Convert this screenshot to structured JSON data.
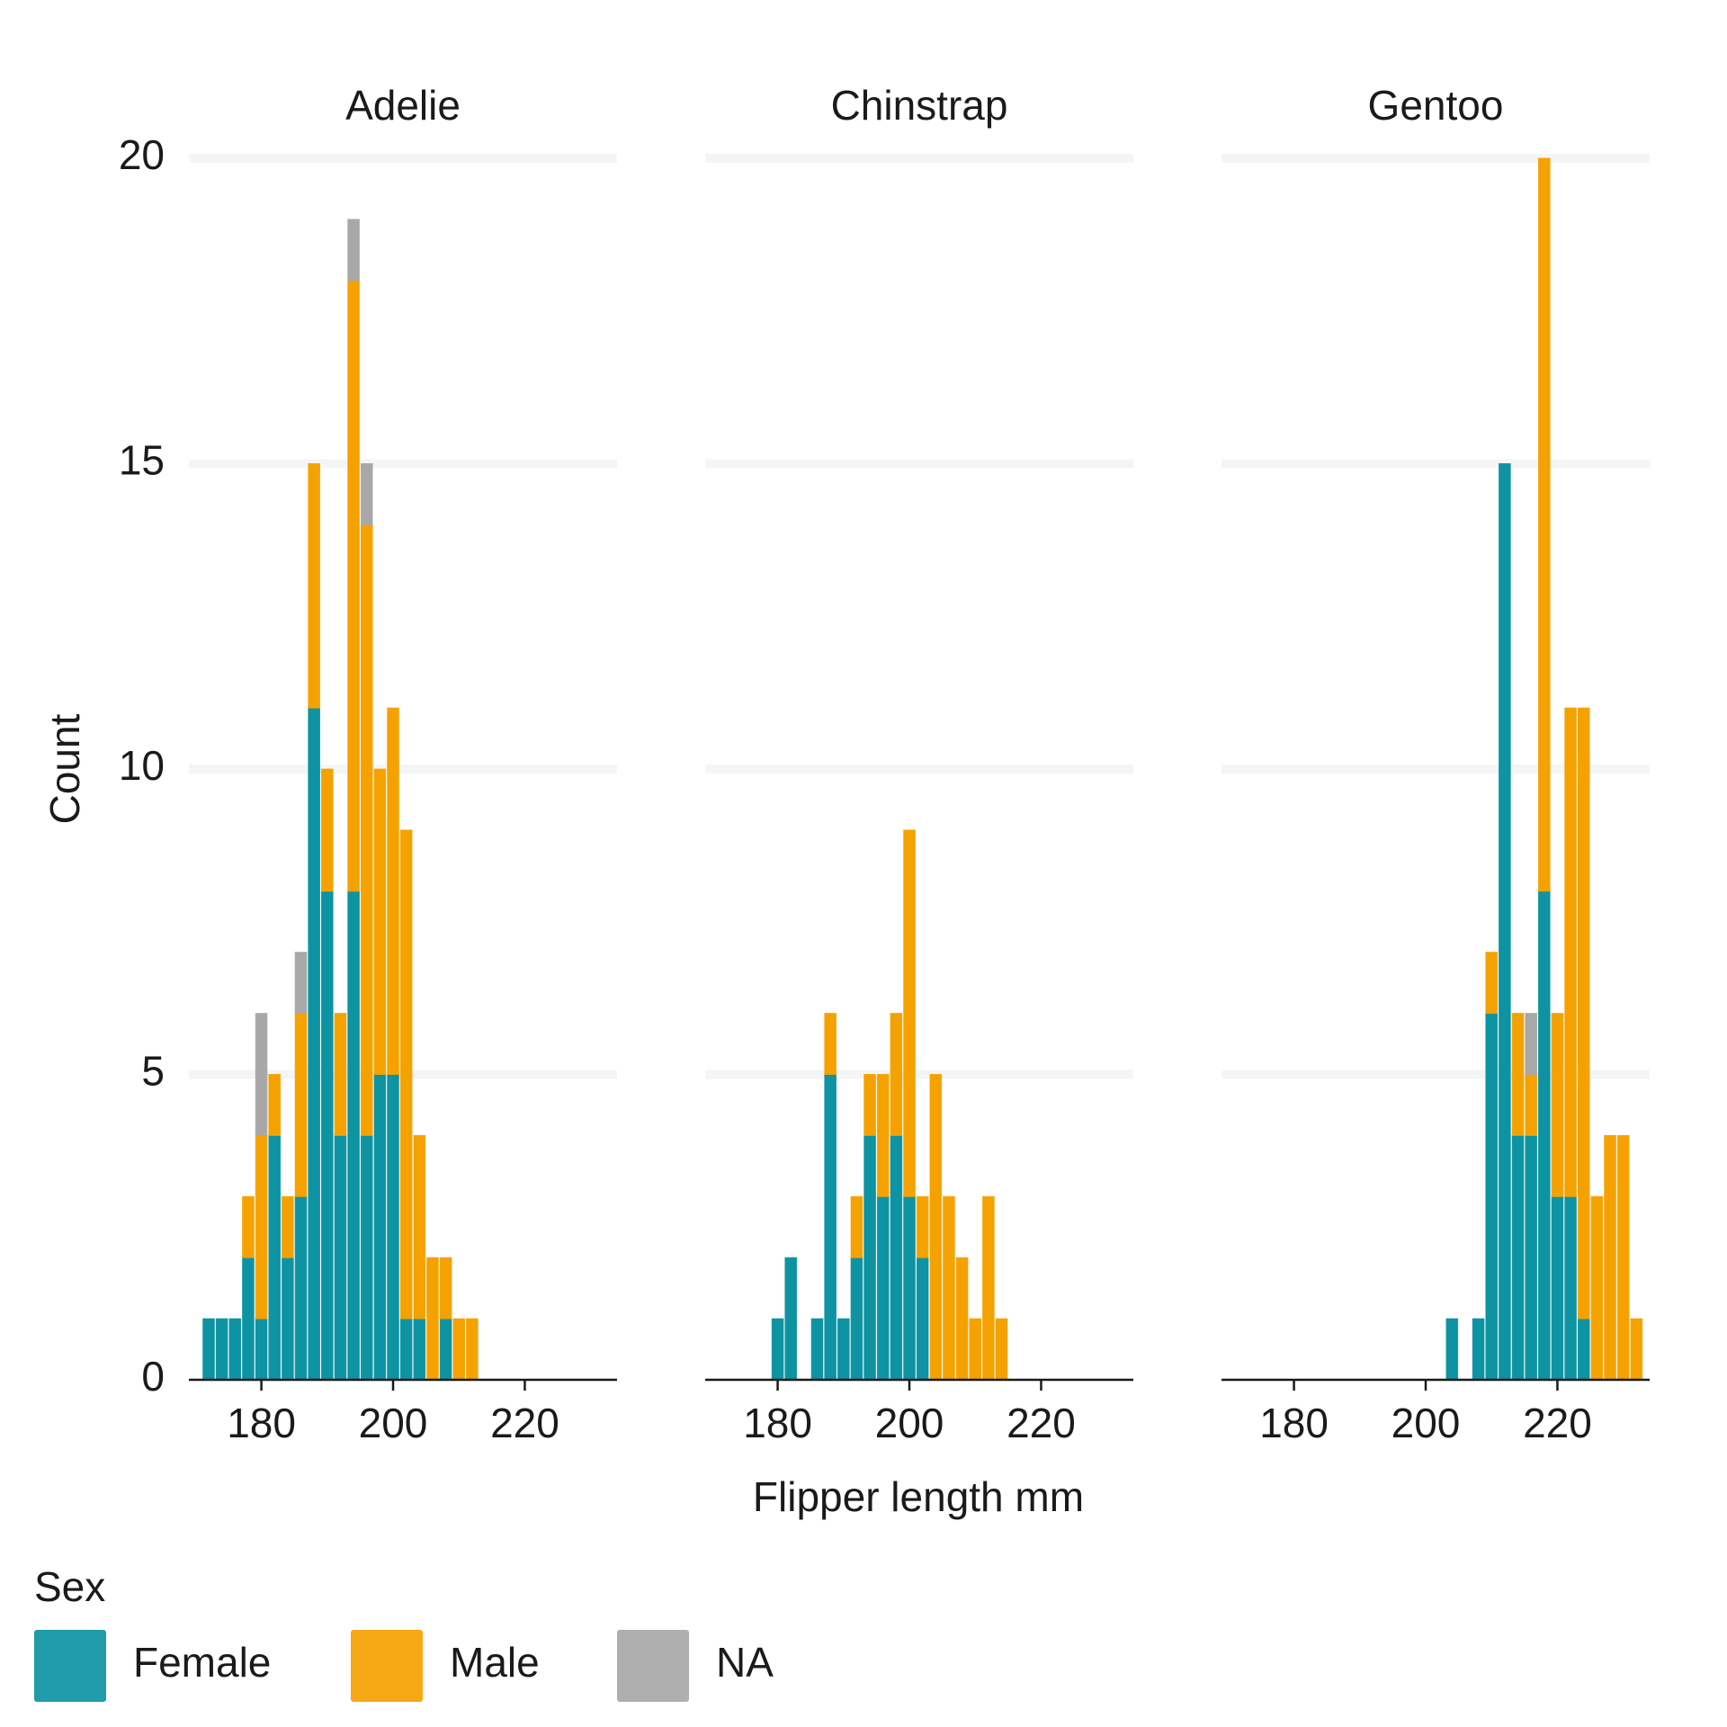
{
  "chart_data": {
    "type": "bar",
    "subtype": "faceted stacked histogram",
    "xlabel": "Flipper length mm",
    "ylabel": "Count",
    "xlim": [
      172,
      231
    ],
    "ylim": [
      0,
      20
    ],
    "xticks": [
      180,
      200,
      220
    ],
    "yticks": [
      0,
      5,
      10,
      15,
      20
    ],
    "bin_width": 2,
    "grid": "horizontal",
    "legend": {
      "title": "Sex",
      "position": "bottom-left",
      "entries": [
        "Female",
        "Male",
        "NA"
      ]
    },
    "colors": {
      "Female": "#0d93a2",
      "Male": "#f5a200",
      "NA": "#a8a8a8"
    },
    "panels": [
      {
        "name": "Adelie",
        "bins": [
          {
            "x": 172,
            "Female": 1,
            "Male": 0,
            "NA": 0
          },
          {
            "x": 174,
            "Female": 1,
            "Male": 0,
            "NA": 0
          },
          {
            "x": 176,
            "Female": 1,
            "Male": 0,
            "NA": 0
          },
          {
            "x": 178,
            "Female": 2,
            "Male": 1,
            "NA": 0
          },
          {
            "x": 180,
            "Female": 1,
            "Male": 3,
            "NA": 2
          },
          {
            "x": 182,
            "Female": 4,
            "Male": 1,
            "NA": 0
          },
          {
            "x": 184,
            "Female": 2,
            "Male": 1,
            "NA": 0
          },
          {
            "x": 186,
            "Female": 3,
            "Male": 3,
            "NA": 1
          },
          {
            "x": 188,
            "Female": 11,
            "Male": 4,
            "NA": 0
          },
          {
            "x": 190,
            "Female": 8,
            "Male": 2,
            "NA": 0
          },
          {
            "x": 192,
            "Female": 4,
            "Male": 2,
            "NA": 0
          },
          {
            "x": 194,
            "Female": 8,
            "Male": 10,
            "NA": 1
          },
          {
            "x": 196,
            "Female": 4,
            "Male": 10,
            "NA": 1
          },
          {
            "x": 198,
            "Female": 5,
            "Male": 5,
            "NA": 0
          },
          {
            "x": 200,
            "Female": 5,
            "Male": 6,
            "NA": 0
          },
          {
            "x": 202,
            "Female": 1,
            "Male": 8,
            "NA": 0
          },
          {
            "x": 204,
            "Female": 1,
            "Male": 3,
            "NA": 0
          },
          {
            "x": 206,
            "Female": 0,
            "Male": 2,
            "NA": 0
          },
          {
            "x": 208,
            "Female": 1,
            "Male": 1,
            "NA": 0
          },
          {
            "x": 210,
            "Female": 0,
            "Male": 1,
            "NA": 0
          },
          {
            "x": 212,
            "Female": 0,
            "Male": 1,
            "NA": 0
          }
        ]
      },
      {
        "name": "Chinstrap",
        "bins": [
          {
            "x": 180,
            "Female": 1,
            "Male": 0,
            "NA": 0
          },
          {
            "x": 182,
            "Female": 2,
            "Male": 0,
            "NA": 0
          },
          {
            "x": 186,
            "Female": 1,
            "Male": 0,
            "NA": 0
          },
          {
            "x": 188,
            "Female": 5,
            "Male": 1,
            "NA": 0
          },
          {
            "x": 190,
            "Female": 1,
            "Male": 0,
            "NA": 0
          },
          {
            "x": 192,
            "Female": 2,
            "Male": 1,
            "NA": 0
          },
          {
            "x": 194,
            "Female": 4,
            "Male": 1,
            "NA": 0
          },
          {
            "x": 196,
            "Female": 3,
            "Male": 2,
            "NA": 0
          },
          {
            "x": 198,
            "Female": 4,
            "Male": 2,
            "NA": 0
          },
          {
            "x": 200,
            "Female": 3,
            "Male": 6,
            "NA": 0
          },
          {
            "x": 202,
            "Female": 2,
            "Male": 1,
            "NA": 0
          },
          {
            "x": 204,
            "Female": 0,
            "Male": 5,
            "NA": 0
          },
          {
            "x": 206,
            "Female": 0,
            "Male": 3,
            "NA": 0
          },
          {
            "x": 208,
            "Female": 0,
            "Male": 2,
            "NA": 0
          },
          {
            "x": 210,
            "Female": 0,
            "Male": 1,
            "NA": 0
          },
          {
            "x": 212,
            "Female": 0,
            "Male": 3,
            "NA": 0
          },
          {
            "x": 214,
            "Female": 0,
            "Male": 1,
            "NA": 0
          }
        ]
      },
      {
        "name": "Gentoo",
        "bins": [
          {
            "x": 204,
            "Female": 1,
            "Male": 0,
            "NA": 0
          },
          {
            "x": 206,
            "Female": 0,
            "Male": 0,
            "NA": 0
          },
          {
            "x": 208,
            "Female": 1,
            "Male": 0,
            "NA": 0
          },
          {
            "x": 210,
            "Female": 6,
            "Male": 1,
            "NA": 0
          },
          {
            "x": 212,
            "Female": 15,
            "Male": 0,
            "NA": 0
          },
          {
            "x": 214,
            "Female": 4,
            "Male": 2,
            "NA": 0
          },
          {
            "x": 216,
            "Female": 4,
            "Male": 1,
            "NA": 1
          },
          {
            "x": 218,
            "Female": 8,
            "Male": 12,
            "NA": 0
          },
          {
            "x": 220,
            "Female": 3,
            "Male": 3,
            "NA": 0
          },
          {
            "x": 222,
            "Female": 3,
            "Male": 8,
            "NA": 0
          },
          {
            "x": 224,
            "Female": 1,
            "Male": 10,
            "NA": 0
          },
          {
            "x": 226,
            "Female": 0,
            "Male": 3,
            "NA": 0
          },
          {
            "x": 228,
            "Female": 0,
            "Male": 4,
            "NA": 0
          },
          {
            "x": 230,
            "Female": 0,
            "Male": 4,
            "NA": 0
          },
          {
            "x": 232,
            "Female": 0,
            "Male": 1,
            "NA": 0
          }
        ]
      }
    ]
  }
}
